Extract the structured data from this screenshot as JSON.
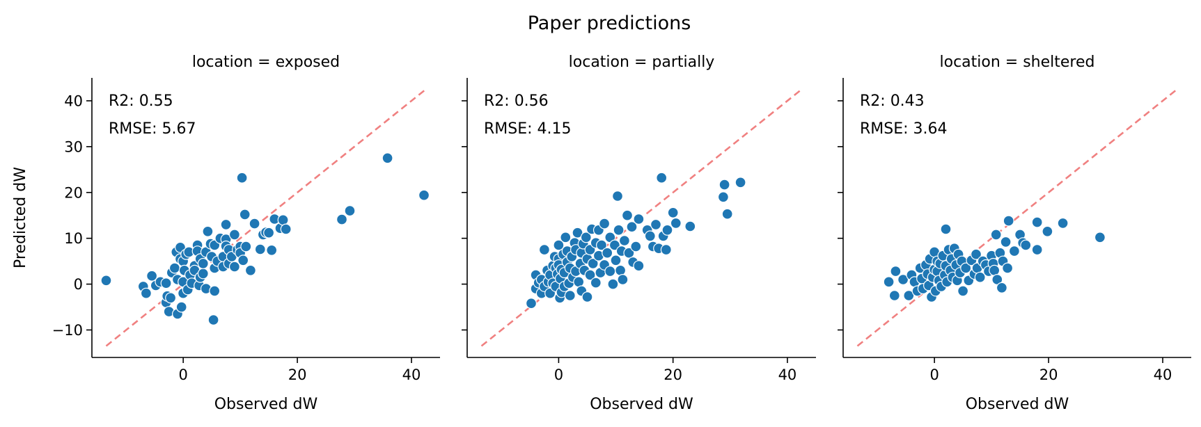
{
  "figure": {
    "title": "Paper predictions"
  },
  "chart_data": [
    {
      "type": "scatter",
      "title": "location = exposed",
      "xlabel": "Observed dW",
      "ylabel": "Predicted dW",
      "xlim": [
        -16,
        45
      ],
      "ylim": [
        -16,
        45
      ],
      "xticks": [
        0,
        20,
        40
      ],
      "yticks": [
        -10,
        0,
        10,
        20,
        30,
        40
      ],
      "xtick_labels": [
        "0",
        "20",
        "40"
      ],
      "ytick_labels": [
        "−10",
        "0",
        "10",
        "20",
        "30",
        "40"
      ],
      "grid": false,
      "marker_color": "#1f77b4",
      "reference_line": {
        "from": [
          -13.5,
          -13.5
        ],
        "to": [
          42.5,
          42.5
        ],
        "color": "#f08080",
        "style": "dashed"
      },
      "annotations": [
        "R2: 0.55",
        "RMSE: 5.67"
      ],
      "points": [
        [
          -13.5,
          0.8
        ],
        [
          -7,
          -0.5
        ],
        [
          -6.5,
          -2
        ],
        [
          -5.5,
          1.8
        ],
        [
          -4.8,
          -0.3
        ],
        [
          -4,
          0.5
        ],
        [
          -3,
          -4
        ],
        [
          -3,
          0.2
        ],
        [
          -2.8,
          -2.6
        ],
        [
          -2.5,
          -6
        ],
        [
          -2.2,
          -3
        ],
        [
          -2,
          2.5
        ],
        [
          -1.5,
          3.5
        ],
        [
          -1.2,
          7
        ],
        [
          -1,
          -6.5
        ],
        [
          -1,
          1
        ],
        [
          -0.5,
          8
        ],
        [
          -0.5,
          5.5
        ],
        [
          -0.3,
          -5
        ],
        [
          0,
          5
        ],
        [
          0,
          -2
        ],
        [
          0,
          0.5
        ],
        [
          0.2,
          3
        ],
        [
          0.5,
          6.5
        ],
        [
          0.8,
          -1.2
        ],
        [
          1,
          7
        ],
        [
          1.2,
          2
        ],
        [
          1.5,
          0.2
        ],
        [
          2,
          4
        ],
        [
          2,
          3
        ],
        [
          2.5,
          8.5
        ],
        [
          2.5,
          7.2
        ],
        [
          2.8,
          -0.3
        ],
        [
          3,
          5.5
        ],
        [
          3,
          1.5
        ],
        [
          3.5,
          2.3
        ],
        [
          3.5,
          4.5
        ],
        [
          4,
          -1
        ],
        [
          4,
          7
        ],
        [
          4.3,
          11.5
        ],
        [
          4.8,
          8.8
        ],
        [
          5,
          6
        ],
        [
          5.3,
          -7.8
        ],
        [
          5.5,
          8.5
        ],
        [
          5.5,
          3.5
        ],
        [
          5.5,
          -1.5
        ],
        [
          6,
          5
        ],
        [
          6.5,
          10
        ],
        [
          7,
          6
        ],
        [
          7,
          3.8
        ],
        [
          7.5,
          13
        ],
        [
          7.5,
          9.8
        ],
        [
          7.5,
          8.3
        ],
        [
          8,
          4.5
        ],
        [
          8,
          7.5
        ],
        [
          8.5,
          6
        ],
        [
          9,
          3.8
        ],
        [
          9,
          10.8
        ],
        [
          9.5,
          7.5
        ],
        [
          10,
          8.2
        ],
        [
          10,
          6.8
        ],
        [
          10.3,
          23.2
        ],
        [
          10.5,
          5.2
        ],
        [
          10.8,
          15.2
        ],
        [
          11,
          8.2
        ],
        [
          11.8,
          3
        ],
        [
          12.5,
          13.2
        ],
        [
          13.5,
          7.6
        ],
        [
          14,
          10.8
        ],
        [
          14.5,
          11.3
        ],
        [
          15,
          11.2
        ],
        [
          15.5,
          7.4
        ],
        [
          16,
          14.2
        ],
        [
          17,
          12.2
        ],
        [
          17.5,
          14
        ],
        [
          18,
          12
        ],
        [
          27.8,
          14.1
        ],
        [
          29.2,
          16
        ],
        [
          35.8,
          27.5
        ],
        [
          42.2,
          19.4
        ]
      ]
    },
    {
      "type": "scatter",
      "title": "location = partially",
      "xlabel": "Observed dW",
      "ylabel": "",
      "xlim": [
        -16,
        45
      ],
      "ylim": [
        -16,
        45
      ],
      "xticks": [
        0,
        20,
        40
      ],
      "yticks": [
        -10,
        0,
        10,
        20,
        30,
        40
      ],
      "xtick_labels": [
        "0",
        "20",
        "40"
      ],
      "ytick_labels": [],
      "grid": false,
      "marker_color": "#1f77b4",
      "reference_line": {
        "from": [
          -13.5,
          -13.5
        ],
        "to": [
          42.5,
          42.5
        ],
        "color": "#f08080",
        "style": "dashed"
      },
      "annotations": [
        "R2: 0.56",
        "RMSE: 4.15"
      ],
      "points": [
        [
          -4.8,
          -4.2
        ],
        [
          -4,
          -1
        ],
        [
          -4,
          2
        ],
        [
          -3.5,
          0.3
        ],
        [
          -3,
          1
        ],
        [
          -3,
          -2
        ],
        [
          -2.5,
          7.5
        ],
        [
          -2.5,
          -0.5
        ],
        [
          -2,
          3
        ],
        [
          -1.8,
          0.5
        ],
        [
          -1.5,
          2
        ],
        [
          -1.5,
          -2
        ],
        [
          -1,
          4
        ],
        [
          -1,
          0.2
        ],
        [
          -0.7,
          6
        ],
        [
          -0.5,
          3.5
        ],
        [
          -0.5,
          -0.5
        ],
        [
          -0.2,
          2.2
        ],
        [
          0,
          8.5
        ],
        [
          0,
          5.5
        ],
        [
          0,
          4.2
        ],
        [
          0.2,
          -3
        ],
        [
          0.3,
          1.2
        ],
        [
          0.5,
          3.2
        ],
        [
          0.5,
          -1.8
        ],
        [
          0.8,
          6.5
        ],
        [
          1,
          2.5
        ],
        [
          1,
          -0.5
        ],
        [
          1.2,
          10.2
        ],
        [
          1.5,
          7.2
        ],
        [
          1.5,
          4.8
        ],
        [
          1.8,
          0.2
        ],
        [
          2,
          3.5
        ],
        [
          2,
          -2.5
        ],
        [
          2.3,
          6
        ],
        [
          2.5,
          1.5
        ],
        [
          2.8,
          9
        ],
        [
          3,
          7.5
        ],
        [
          3,
          2.8
        ],
        [
          3.3,
          11.2
        ],
        [
          3.5,
          0.5
        ],
        [
          3.8,
          4.5
        ],
        [
          4,
          6.8
        ],
        [
          4,
          -1.5
        ],
        [
          4.3,
          8.8
        ],
        [
          4.5,
          3
        ],
        [
          4.8,
          10.2
        ],
        [
          5,
          5.5
        ],
        [
          5,
          -2.8
        ],
        [
          5.5,
          7.5
        ],
        [
          5.5,
          2
        ],
        [
          5.8,
          12
        ],
        [
          6,
          4.5
        ],
        [
          6.5,
          9
        ],
        [
          6.5,
          0.3
        ],
        [
          7,
          11.8
        ],
        [
          7,
          6.2
        ],
        [
          7.3,
          2.5
        ],
        [
          7.5,
          8.5
        ],
        [
          8,
          4.2
        ],
        [
          8,
          13.2
        ],
        [
          8.5,
          6.8
        ],
        [
          9,
          10.2
        ],
        [
          9,
          2.8
        ],
        [
          9.5,
          0
        ],
        [
          9.8,
          8.5
        ],
        [
          10,
          5.2
        ],
        [
          10.3,
          19.2
        ],
        [
          10.5,
          11.8
        ],
        [
          10.8,
          3
        ],
        [
          11,
          7.2
        ],
        [
          11.2,
          1
        ],
        [
          11.5,
          9.5
        ],
        [
          12,
          15
        ],
        [
          12.3,
          6.8
        ],
        [
          12.8,
          12.5
        ],
        [
          13,
          4.8
        ],
        [
          13.5,
          8.2
        ],
        [
          14,
          14.2
        ],
        [
          14,
          4
        ],
        [
          15.5,
          11.8
        ],
        [
          16,
          10.5
        ],
        [
          16.5,
          8.2
        ],
        [
          17,
          13
        ],
        [
          17.5,
          7.8
        ],
        [
          18,
          23.2
        ],
        [
          18.3,
          10.5
        ],
        [
          18.8,
          7.5
        ],
        [
          19,
          11.8
        ],
        [
          20,
          15.6
        ],
        [
          20.5,
          13.3
        ],
        [
          23,
          12.6
        ],
        [
          28.8,
          19
        ],
        [
          29,
          21.7
        ],
        [
          29.5,
          15.3
        ],
        [
          31.8,
          22.2
        ]
      ]
    },
    {
      "type": "scatter",
      "title": "location = sheltered",
      "xlabel": "Observed dW",
      "ylabel": "",
      "xlim": [
        -16,
        45
      ],
      "ylim": [
        -16,
        45
      ],
      "xticks": [
        0,
        20,
        40
      ],
      "yticks": [
        -10,
        0,
        10,
        20,
        30,
        40
      ],
      "xtick_labels": [
        "0",
        "20",
        "40"
      ],
      "ytick_labels": [],
      "grid": false,
      "marker_color": "#1f77b4",
      "reference_line": {
        "from": [
          -13.5,
          -13.5
        ],
        "to": [
          42.5,
          42.5
        ],
        "color": "#f08080",
        "style": "dashed"
      },
      "annotations": [
        "R2: 0.43",
        "RMSE: 3.64"
      ],
      "points": [
        [
          -8,
          0.5
        ],
        [
          -7,
          -2.5
        ],
        [
          -6.8,
          2.8
        ],
        [
          -5.5,
          1
        ],
        [
          -4.5,
          -2.5
        ],
        [
          -4,
          2
        ],
        [
          -3.5,
          0.5
        ],
        [
          -3,
          -1.5
        ],
        [
          -2.5,
          3.5
        ],
        [
          -2.2,
          1.2
        ],
        [
          -2,
          -1
        ],
        [
          -1.5,
          4.2
        ],
        [
          -1.2,
          2.2
        ],
        [
          -1,
          -0.3
        ],
        [
          -0.8,
          5.5
        ],
        [
          -0.5,
          -2.8
        ],
        [
          -0.3,
          1.5
        ],
        [
          0,
          3.2
        ],
        [
          0,
          7
        ],
        [
          0.2,
          -1.5
        ],
        [
          0.5,
          2.8
        ],
        [
          0.5,
          5
        ],
        [
          0.8,
          0.8
        ],
        [
          1,
          4.5
        ],
        [
          1.2,
          -0.5
        ],
        [
          1.5,
          6.2
        ],
        [
          1.8,
          2
        ],
        [
          2,
          12
        ],
        [
          2,
          4
        ],
        [
          2.2,
          0.5
        ],
        [
          2.5,
          7.5
        ],
        [
          2.8,
          3
        ],
        [
          3,
          5.5
        ],
        [
          3.2,
          1.5
        ],
        [
          3.5,
          7.8
        ],
        [
          3.8,
          4.2
        ],
        [
          4,
          0.8
        ],
        [
          4.2,
          6.5
        ],
        [
          4.5,
          2.5
        ],
        [
          4.8,
          5
        ],
        [
          5,
          -1.5
        ],
        [
          5.5,
          3.5
        ],
        [
          6,
          0.8
        ],
        [
          6.5,
          5.2
        ],
        [
          7,
          2.2
        ],
        [
          7.3,
          6.5
        ],
        [
          7.5,
          3.5
        ],
        [
          8,
          1.5
        ],
        [
          8.5,
          5
        ],
        [
          9,
          4.2
        ],
        [
          9.5,
          2.8
        ],
        [
          10,
          6.2
        ],
        [
          10.3,
          4.5
        ],
        [
          10.5,
          3
        ],
        [
          10.8,
          10.8
        ],
        [
          11,
          1
        ],
        [
          11.5,
          6.8
        ],
        [
          11.8,
          -0.8
        ],
        [
          12,
          5
        ],
        [
          12.5,
          9.2
        ],
        [
          12.8,
          3.5
        ],
        [
          13,
          13.8
        ],
        [
          14,
          7.2
        ],
        [
          15,
          10.8
        ],
        [
          15.5,
          9
        ],
        [
          16,
          8.5
        ],
        [
          18,
          13.5
        ],
        [
          18,
          7.5
        ],
        [
          19.8,
          11.5
        ],
        [
          22.5,
          13.3
        ],
        [
          29,
          10.2
        ]
      ]
    }
  ]
}
